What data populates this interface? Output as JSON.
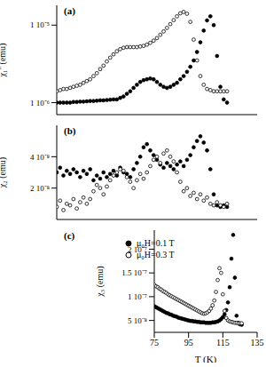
{
  "chart_data": [
    {
      "type": "scatter",
      "panel_label": "(a)",
      "ylabel": "χ₁'' (emu)",
      "log": "y",
      "tick_labels": "y",
      "xlim": [
        75,
        135
      ],
      "xticks": [
        75,
        95,
        115,
        135
      ],
      "ylim": [
        7e-07,
        1.8e-05
      ],
      "yticks": [
        {
          "value": 1e-06,
          "label": "1 10⁻⁶"
        },
        {
          "value": 1e-05,
          "label": "1 10⁻⁵"
        }
      ],
      "x": [
        75,
        76,
        77,
        78,
        79,
        80,
        81,
        82,
        83,
        84,
        85,
        86,
        87,
        88,
        89,
        90,
        91,
        92,
        93,
        94,
        95,
        96,
        97,
        98,
        99,
        100,
        101,
        102,
        103,
        104,
        105,
        106,
        107,
        108,
        109,
        110,
        111,
        112,
        113,
        114,
        115,
        116,
        117,
        118,
        119,
        120,
        121,
        122,
        123,
        124,
        125,
        126
      ],
      "series": [
        {
          "color": "#000000",
          "marker": "filled_circle",
          "values": [
            1e-06,
            1e-06,
            1e-06,
            1e-06,
            1e-06,
            1.02e-06,
            1.02e-06,
            1.03e-06,
            1.03e-06,
            1.04e-06,
            1.05e-06,
            1.05e-06,
            1.06e-06,
            1.07e-06,
            1.07e-06,
            1.08e-06,
            1.09e-06,
            1.1e-06,
            1.1e-06,
            1.15e-06,
            1.2e-06,
            1.3e-06,
            1.4e-06,
            1.55e-06,
            1.7e-06,
            1.85e-06,
            1.95e-06,
            2e-06,
            2.05e-06,
            2e-06,
            1.85e-06,
            1.7e-06,
            1.6e-06,
            1.55e-06,
            1.6e-06,
            1.7e-06,
            1.8e-06,
            2e-06,
            2.2e-06,
            2.5e-06,
            2.9e-06,
            3.5e-06,
            4.5e-06,
            6e-06,
            8.5e-06,
            1.15e-05,
            1.3e-05,
            1e-05,
            4e-06,
            1.6e-06,
            1.1e-06,
            1e-06
          ]
        },
        {
          "color": "#000000",
          "marker": "open_circle",
          "values": [
            1.4e-06,
            1.45e-06,
            1.5e-06,
            1.5e-06,
            1.55e-06,
            1.6e-06,
            1.65e-06,
            1.7e-06,
            1.8e-06,
            1.9e-06,
            2e-06,
            2.2e-06,
            2.4e-06,
            2.7e-06,
            3e-06,
            3.4e-06,
            3.8e-06,
            4.2e-06,
            4.6e-06,
            4.9e-06,
            5.1e-06,
            5.2e-06,
            5.2e-06,
            5.2e-06,
            5.2e-06,
            5.3e-06,
            5.4e-06,
            5.6e-06,
            5.9e-06,
            6.3e-06,
            6.8e-06,
            7.5e-06,
            8.3e-06,
            9.2e-06,
            1.03e-05,
            1.16e-05,
            1.3e-05,
            1.42e-05,
            1.48e-05,
            1.4e-05,
            1.1e-05,
            6.5e-06,
            3.5e-06,
            2.2e-06,
            1.7e-06,
            1.5e-06,
            1.45e-06,
            1.4e-06,
            1.4e-06,
            1.4e-06,
            1.4e-06,
            1.4e-06
          ]
        }
      ]
    },
    {
      "type": "scatter",
      "panel_label": "(b)",
      "ylabel": "χ₂ (emu)",
      "tick_labels": "y",
      "xlim": [
        75,
        135
      ],
      "xticks": [
        75,
        95,
        115,
        135
      ],
      "ylim": [
        0,
        6e-08
      ],
      "yticks": [
        {
          "value": 2e-08,
          "label": "2 10⁻⁸"
        },
        {
          "value": 4e-08,
          "label": "4 10⁻⁸"
        }
      ],
      "x": [
        75,
        76,
        77,
        78,
        79,
        80,
        81,
        82,
        83,
        84,
        85,
        86,
        87,
        88,
        89,
        90,
        91,
        92,
        93,
        94,
        95,
        96,
        97,
        98,
        99,
        100,
        101,
        102,
        103,
        104,
        105,
        106,
        107,
        108,
        109,
        110,
        111,
        112,
        113,
        114,
        115,
        116,
        117,
        118,
        119,
        120,
        121,
        122,
        123,
        124,
        125,
        126
      ],
      "series": [
        {
          "color": "#000000",
          "marker": "filled_circle",
          "values": [
            3e-08,
            3.3e-08,
            2.8e-08,
            3.1e-08,
            2.9e-08,
            3.2e-08,
            3e-08,
            2.7e-08,
            3.1e-08,
            2.9e-08,
            3.2e-08,
            2.5e-08,
            2.8e-08,
            2.6e-08,
            3e-08,
            2.7e-08,
            2.9e-08,
            3.1e-08,
            2.8e-08,
            3.3e-08,
            3e-08,
            2.9e-08,
            2.7e-08,
            3.2e-08,
            3.6e-08,
            4e-08,
            4.6e-08,
            4.8e-08,
            4.4e-08,
            4.1e-08,
            3.8e-08,
            3.5e-08,
            3.3e-08,
            3.6e-08,
            3.4e-08,
            3.2e-08,
            3.5e-08,
            3.7e-08,
            3.4e-08,
            3.8e-08,
            4.1e-08,
            4.6e-08,
            5e-08,
            5.3e-08,
            4.9e-08,
            4.4e-08,
            3.2e-08,
            1.6e-08,
            9e-09,
            8e-09,
            9e-09,
            8e-09
          ]
        },
        {
          "color": "#000000",
          "marker": "open_circle",
          "values": [
            8e-09,
            1.2e-08,
            6e-09,
            1e-08,
            9e-09,
            1.3e-08,
            7e-09,
            1.1e-08,
            1.4e-08,
            1e-08,
            1.3e-08,
            1.8e-08,
            2.2e-08,
            2e-08,
            1.6e-08,
            2.1e-08,
            2.5e-08,
            2.8e-08,
            3e-08,
            3.2e-08,
            3.1e-08,
            2.7e-08,
            2.4e-08,
            2e-08,
            2.5e-08,
            2.9e-08,
            2.6e-08,
            3e-08,
            3.4e-08,
            3.8e-08,
            4e-08,
            3.6e-08,
            4.2e-08,
            4.4e-08,
            4e-08,
            3.7e-08,
            3e-08,
            2.4e-08,
            1.8e-08,
            2e-08,
            1.5e-08,
            1.7e-08,
            1.3e-08,
            1.6e-08,
            1.2e-08,
            1.4e-08,
            1e-08,
            9e-09,
            1.1e-08,
            9e-09,
            8e-09,
            1e-08
          ]
        }
      ]
    },
    {
      "type": "scatter",
      "panel_label": "(c)",
      "ylabel": "χ₃ (emu)",
      "xlabel": "T (K)",
      "legend": "top",
      "xlim": [
        75,
        135
      ],
      "xticks": [
        75,
        95,
        115,
        135
      ],
      "ylim": [
        2.5e-08,
        2.4e-07
      ],
      "yticks": [
        {
          "value": 5e-08,
          "label": "5 10⁻⁸"
        },
        {
          "value": 1e-07,
          "label": "1 10⁻⁷"
        },
        {
          "value": 1.5e-07,
          "label": "1.5 10⁻⁷"
        },
        {
          "value": 2e-07,
          "label": "2 10⁻⁷"
        }
      ],
      "x": [
        75,
        76,
        77,
        78,
        79,
        80,
        81,
        82,
        83,
        84,
        85,
        86,
        87,
        88,
        89,
        90,
        91,
        92,
        93,
        94,
        95,
        96,
        97,
        98,
        99,
        100,
        101,
        102,
        103,
        104,
        105,
        106,
        107,
        108,
        109,
        110,
        111,
        112,
        113,
        114,
        115,
        116,
        117,
        118,
        119,
        120,
        121,
        122,
        123,
        124,
        125,
        126
      ],
      "series": [
        {
          "name": "μ₀H=0.1 T",
          "color": "#000000",
          "marker": "filled_circle",
          "values": [
            8e-08,
            7.8e-08,
            7.6e-08,
            7.4e-08,
            7.2e-08,
            7e-08,
            6.8e-08,
            6.6e-08,
            6.5e-08,
            6.3e-08,
            6.2e-08,
            6e-08,
            5.9e-08,
            5.8e-08,
            5.6e-08,
            5.5e-08,
            5.4e-08,
            5.3e-08,
            5.2e-08,
            5.1e-08,
            5e-08,
            4.9e-08,
            4.9e-08,
            4.8e-08,
            4.8e-08,
            4.7e-08,
            4.7e-08,
            4.6e-08,
            4.6e-08,
            4.6e-08,
            4.5e-08,
            4.5e-08,
            4.5e-08,
            4.5e-08,
            4.6e-08,
            4.6e-08,
            4.7e-08,
            4.8e-08,
            5e-08,
            5.3e-08,
            5.7e-08,
            6.3e-08,
            7.2e-08,
            8.8e-08,
            1.2e-07,
            1.8e-07,
            2.3e-07,
            1.4e-07,
            6e-08,
            4.5e-08,
            4.2e-08,
            4.1e-08
          ]
        },
        {
          "name": "μ₀H=0.3 T",
          "color": "#000000",
          "marker": "open_circle",
          "values": [
            1.25e-07,
            1.22e-07,
            1.2e-07,
            1.17e-07,
            1.15e-07,
            1.12e-07,
            1.1e-07,
            1.08e-07,
            1.05e-07,
            1.03e-07,
            1.01e-07,
            9.9e-08,
            9.7e-08,
            9.5e-08,
            9.3e-08,
            9.1e-08,
            8.9e-08,
            8.7e-08,
            8.5e-08,
            8.3e-08,
            8.1e-08,
            7.9e-08,
            7.7e-08,
            7.5e-08,
            7.3e-08,
            7.1e-08,
            6.9e-08,
            6.7e-08,
            6.5e-08,
            6.4e-08,
            6.5e-08,
            6.7e-08,
            7e-08,
            7.5e-08,
            8.2e-08,
            9.2e-08,
            1.1e-07,
            1.35e-07,
            1.6e-07,
            1.5e-07,
            1.05e-07,
            7e-08,
            5.5e-08,
            5e-08,
            4.8e-08,
            4.7e-08,
            4.6e-08,
            4.5e-08,
            4.5e-08,
            4.4e-08,
            4.4e-08,
            4.4e-08
          ]
        }
      ]
    }
  ]
}
